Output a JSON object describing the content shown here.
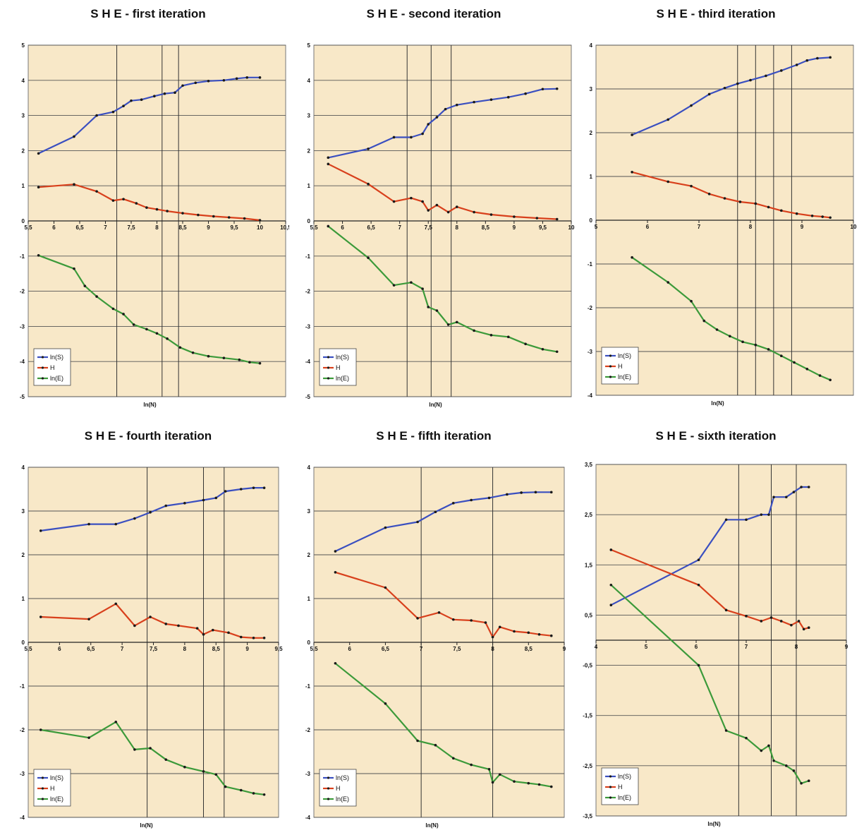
{
  "chart_data": [
    {
      "type": "line",
      "title": "S H E - first iteration",
      "xlabel": "ln(N)",
      "ylabel": "",
      "xlim": [
        5.5,
        10.5
      ],
      "ylim": [
        -5,
        5
      ],
      "xticks": [
        "5,5",
        "6",
        "6,5",
        "7",
        "7,5",
        "8",
        "8,5",
        "9",
        "9,5",
        "10",
        "10,5"
      ],
      "yticks": [
        "5",
        "4",
        "3",
        "2",
        "1",
        "0",
        "-1",
        "-2",
        "-3",
        "-4",
        "-5"
      ],
      "vlines": [
        7.22,
        8.1,
        8.42
      ],
      "legend_position": "bottom-left",
      "series": [
        {
          "name": "ln(S)",
          "color": "#3a4fc0",
          "x": [
            5.7,
            6.39,
            6.83,
            7.15,
            7.35,
            7.5,
            7.7,
            7.95,
            8.15,
            8.35,
            8.5,
            8.75,
            9.0,
            9.3,
            9.55,
            9.75,
            10.0
          ],
          "y": [
            1.92,
            2.4,
            3.0,
            3.1,
            3.27,
            3.42,
            3.45,
            3.55,
            3.62,
            3.65,
            3.85,
            3.93,
            3.98,
            4.0,
            4.05,
            4.08,
            4.08
          ]
        },
        {
          "name": "H",
          "color": "#d8401c",
          "x": [
            5.7,
            6.39,
            6.83,
            7.15,
            7.35,
            7.6,
            7.8,
            8.0,
            8.2,
            8.5,
            8.8,
            9.1,
            9.4,
            9.7,
            10.0
          ],
          "y": [
            0.96,
            1.04,
            0.84,
            0.58,
            0.62,
            0.5,
            0.38,
            0.33,
            0.28,
            0.22,
            0.17,
            0.13,
            0.1,
            0.07,
            0.02
          ]
        },
        {
          "name": "ln(E)",
          "color": "#3c9a3a",
          "x": [
            5.7,
            6.39,
            6.6,
            6.83,
            7.15,
            7.35,
            7.55,
            7.8,
            8.0,
            8.2,
            8.45,
            8.7,
            9.0,
            9.3,
            9.6,
            9.8,
            10.0
          ],
          "y": [
            -0.98,
            -1.36,
            -1.85,
            -2.15,
            -2.5,
            -2.65,
            -2.95,
            -3.08,
            -3.2,
            -3.35,
            -3.6,
            -3.75,
            -3.85,
            -3.9,
            -3.95,
            -4.02,
            -4.05
          ]
        }
      ]
    },
    {
      "type": "line",
      "title": "S H E - second iteration",
      "xlabel": "ln(N)",
      "ylabel": "",
      "xlim": [
        5.5,
        10
      ],
      "ylim": [
        -5,
        5
      ],
      "xticks": [
        "5,5",
        "6",
        "6,5",
        "7",
        "7,5",
        "8",
        "8,5",
        "9",
        "9,5",
        "10"
      ],
      "yticks": [
        "5",
        "4",
        "3",
        "2",
        "1",
        "0",
        "-1",
        "-2",
        "-3",
        "-4",
        "-5"
      ],
      "vlines": [
        7.13,
        7.55,
        7.9
      ],
      "legend_position": "bottom-left",
      "series": [
        {
          "name": "ln(S)",
          "color": "#3a4fc0",
          "x": [
            5.75,
            6.45,
            6.9,
            7.2,
            7.4,
            7.5,
            7.65,
            7.8,
            8.0,
            8.3,
            8.6,
            8.9,
            9.2,
            9.5,
            9.75
          ],
          "y": [
            1.8,
            2.05,
            2.38,
            2.38,
            2.48,
            2.75,
            2.95,
            3.18,
            3.3,
            3.38,
            3.45,
            3.52,
            3.62,
            3.75,
            3.76
          ]
        },
        {
          "name": "H",
          "color": "#d8401c",
          "x": [
            5.75,
            6.45,
            6.9,
            7.2,
            7.4,
            7.5,
            7.65,
            7.85,
            8.0,
            8.3,
            8.6,
            9.0,
            9.4,
            9.75
          ],
          "y": [
            1.62,
            1.05,
            0.55,
            0.65,
            0.55,
            0.3,
            0.45,
            0.25,
            0.4,
            0.25,
            0.18,
            0.12,
            0.08,
            0.05
          ]
        },
        {
          "name": "ln(E)",
          "color": "#3c9a3a",
          "x": [
            5.75,
            6.45,
            6.9,
            7.2,
            7.4,
            7.5,
            7.65,
            7.85,
            8.0,
            8.3,
            8.6,
            8.9,
            9.2,
            9.5,
            9.75
          ],
          "y": [
            -0.15,
            -1.05,
            -1.83,
            -1.75,
            -1.93,
            -2.45,
            -2.55,
            -2.95,
            -2.88,
            -3.12,
            -3.25,
            -3.3,
            -3.5,
            -3.65,
            -3.72
          ]
        }
      ]
    },
    {
      "type": "line",
      "title": "S H E - third iteration",
      "xlabel": "ln(N)",
      "ylabel": "",
      "xlim": [
        5,
        10
      ],
      "ylim": [
        -4,
        4
      ],
      "xticks": [
        "5",
        "6",
        "7",
        "8",
        "9",
        "10"
      ],
      "yticks": [
        "4",
        "3",
        "2",
        "1",
        "0",
        "-1",
        "-2",
        "-3",
        "-4"
      ],
      "vlines": [
        7.75,
        8.1,
        8.45,
        8.8
      ],
      "legend_position": "bottom-left",
      "series": [
        {
          "name": "ln(S)",
          "color": "#3a4fc0",
          "x": [
            5.7,
            6.4,
            6.85,
            7.2,
            7.5,
            7.75,
            8.0,
            8.3,
            8.6,
            8.9,
            9.1,
            9.3,
            9.55
          ],
          "y": [
            1.95,
            2.3,
            2.62,
            2.88,
            3.02,
            3.12,
            3.2,
            3.3,
            3.42,
            3.55,
            3.65,
            3.7,
            3.72
          ]
        },
        {
          "name": "H",
          "color": "#d8401c",
          "x": [
            5.7,
            6.4,
            6.85,
            7.2,
            7.5,
            7.8,
            8.1,
            8.35,
            8.6,
            8.9,
            9.2,
            9.4,
            9.55
          ],
          "y": [
            1.1,
            0.88,
            0.78,
            0.6,
            0.5,
            0.42,
            0.38,
            0.3,
            0.22,
            0.15,
            0.1,
            0.08,
            0.06
          ]
        },
        {
          "name": "ln(E)",
          "color": "#3c9a3a",
          "x": [
            5.7,
            6.4,
            6.85,
            7.1,
            7.35,
            7.6,
            7.85,
            8.1,
            8.35,
            8.6,
            8.85,
            9.1,
            9.35,
            9.55
          ],
          "y": [
            -0.85,
            -1.42,
            -1.85,
            -2.3,
            -2.5,
            -2.65,
            -2.78,
            -2.85,
            -2.95,
            -3.1,
            -3.25,
            -3.4,
            -3.55,
            -3.65
          ]
        }
      ]
    },
    {
      "type": "line",
      "title": "S H E - fourth iteration",
      "xlabel": "ln(N)",
      "ylabel": "",
      "xlim": [
        5.5,
        9.5
      ],
      "ylim": [
        -4,
        4
      ],
      "xticks": [
        "5,5",
        "6",
        "6,5",
        "7",
        "7,5",
        "8",
        "8,5",
        "9",
        "9,5"
      ],
      "yticks": [
        "4",
        "3",
        "2",
        "1",
        "0",
        "-1",
        "-2",
        "-3",
        "-4"
      ],
      "vlines": [
        7.4,
        8.3,
        8.63
      ],
      "legend_position": "bottom-left",
      "series": [
        {
          "name": "ln(S)",
          "color": "#3a4fc0",
          "x": [
            5.7,
            6.47,
            6.9,
            7.2,
            7.45,
            7.7,
            8.0,
            8.3,
            8.5,
            8.65,
            8.9,
            9.1,
            9.27
          ],
          "y": [
            2.55,
            2.7,
            2.7,
            2.83,
            2.97,
            3.12,
            3.18,
            3.25,
            3.3,
            3.45,
            3.5,
            3.53,
            3.53
          ]
        },
        {
          "name": "H",
          "color": "#d8401c",
          "x": [
            5.7,
            6.47,
            6.9,
            7.2,
            7.45,
            7.7,
            7.9,
            8.2,
            8.3,
            8.45,
            8.7,
            8.9,
            9.1,
            9.27
          ],
          "y": [
            0.58,
            0.53,
            0.88,
            0.38,
            0.58,
            0.42,
            0.38,
            0.32,
            0.18,
            0.28,
            0.22,
            0.12,
            0.1,
            0.1
          ]
        },
        {
          "name": "ln(E)",
          "color": "#3c9a3a",
          "x": [
            5.7,
            6.47,
            6.9,
            7.2,
            7.45,
            7.7,
            8.0,
            8.3,
            8.5,
            8.65,
            8.9,
            9.1,
            9.27
          ],
          "y": [
            -2.0,
            -2.18,
            -1.82,
            -2.45,
            -2.42,
            -2.68,
            -2.85,
            -2.95,
            -3.02,
            -3.3,
            -3.38,
            -3.45,
            -3.48
          ]
        }
      ]
    },
    {
      "type": "line",
      "title": "S H E - fifth iteration",
      "xlabel": "ln(N)",
      "ylabel": "",
      "xlim": [
        5.5,
        9
      ],
      "ylim": [
        -4,
        4
      ],
      "xticks": [
        "5,5",
        "6",
        "6,5",
        "7",
        "7,5",
        "8",
        "8,5",
        "9"
      ],
      "yticks": [
        "4",
        "3",
        "2",
        "1",
        "0",
        "-1",
        "-2",
        "-3",
        "-4"
      ],
      "vlines": [
        7.0,
        8.0
      ],
      "legend_position": "bottom-left",
      "series": [
        {
          "name": "ln(S)",
          "color": "#3a4fc0",
          "x": [
            5.8,
            6.5,
            6.95,
            7.2,
            7.45,
            7.7,
            7.95,
            8.2,
            8.4,
            8.6,
            8.82
          ],
          "y": [
            2.08,
            2.62,
            2.75,
            2.98,
            3.18,
            3.25,
            3.3,
            3.38,
            3.42,
            3.43,
            3.43
          ]
        },
        {
          "name": "H",
          "color": "#d8401c",
          "x": [
            5.8,
            6.5,
            6.95,
            7.25,
            7.45,
            7.7,
            7.9,
            8.0,
            8.1,
            8.3,
            8.5,
            8.65,
            8.82
          ],
          "y": [
            1.6,
            1.25,
            0.55,
            0.68,
            0.52,
            0.5,
            0.45,
            0.12,
            0.35,
            0.25,
            0.22,
            0.18,
            0.15
          ]
        },
        {
          "name": "ln(E)",
          "color": "#3c9a3a",
          "x": [
            5.8,
            6.5,
            6.95,
            7.2,
            7.45,
            7.7,
            7.95,
            8.0,
            8.1,
            8.3,
            8.5,
            8.65,
            8.82
          ],
          "y": [
            -0.48,
            -1.4,
            -2.25,
            -2.35,
            -2.65,
            -2.8,
            -2.9,
            -3.2,
            -3.02,
            -3.18,
            -3.22,
            -3.25,
            -3.3
          ]
        }
      ]
    },
    {
      "type": "line",
      "title": "S H E - sixth iteration",
      "xlabel": "ln(N)",
      "ylabel": "",
      "xlim": [
        4,
        9
      ],
      "ylim": [
        -3.5,
        3.5
      ],
      "xticks": [
        "4",
        "5",
        "6",
        "7",
        "8",
        "9"
      ],
      "yticks": [
        "3,5",
        "2,5",
        "1,5",
        "0,5",
        "-0,5",
        "-1,5",
        "-2,5",
        "-3,5"
      ],
      "vlines": [
        6.85,
        7.5,
        8.0
      ],
      "legend_position": "bottom-left",
      "series": [
        {
          "name": "ln(S)",
          "color": "#3a4fc0",
          "x": [
            4.3,
            6.05,
            6.6,
            7.0,
            7.3,
            7.45,
            7.55,
            7.8,
            7.95,
            8.1,
            8.25
          ],
          "y": [
            0.7,
            1.6,
            2.4,
            2.4,
            2.5,
            2.5,
            2.85,
            2.85,
            2.95,
            3.05,
            3.05
          ]
        },
        {
          "name": "H",
          "color": "#d8401c",
          "x": [
            4.3,
            6.05,
            6.6,
            7.0,
            7.3,
            7.5,
            7.7,
            7.9,
            8.05,
            8.15,
            8.25
          ],
          "y": [
            1.8,
            1.1,
            0.6,
            0.48,
            0.38,
            0.45,
            0.38,
            0.3,
            0.38,
            0.22,
            0.25
          ]
        },
        {
          "name": "ln(E)",
          "color": "#3c9a3a",
          "x": [
            4.3,
            6.05,
            6.6,
            7.0,
            7.3,
            7.45,
            7.55,
            7.8,
            7.95,
            8.1,
            8.25
          ],
          "y": [
            1.1,
            -0.5,
            -1.8,
            -1.95,
            -2.2,
            -2.1,
            -2.4,
            -2.5,
            -2.6,
            -2.85,
            -2.8
          ]
        }
      ]
    }
  ]
}
